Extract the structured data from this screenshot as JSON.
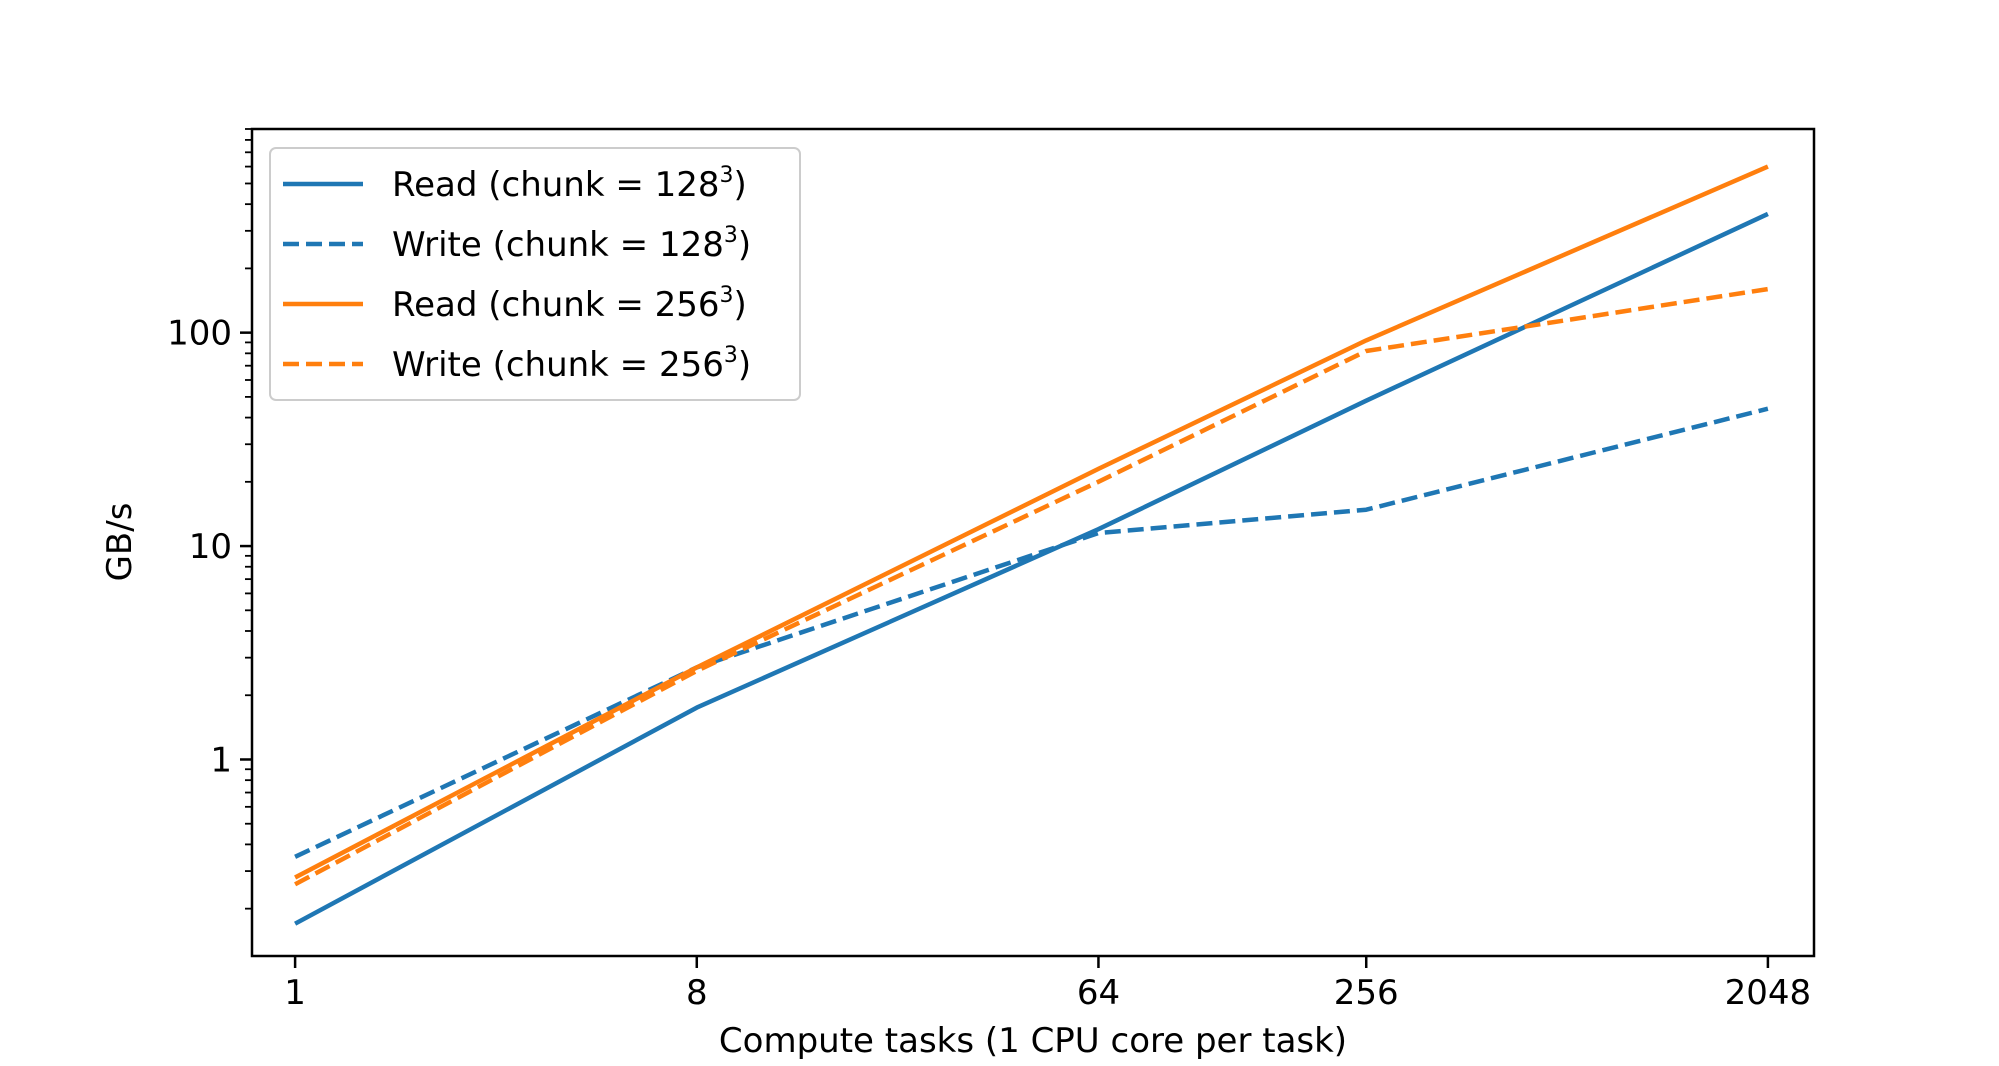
{
  "chart_data": {
    "type": "line",
    "xlabel": "Compute tasks (1 CPU core per task)",
    "ylabel": "GB/s",
    "x_scale": "log2",
    "y_scale": "log10",
    "grid": false,
    "legend_position": "upper-left",
    "x_ticks": [
      1,
      8,
      64,
      256,
      2048
    ],
    "x_tick_labels": [
      "1",
      "8",
      "64",
      "256",
      "2048"
    ],
    "y_ticks": [
      1,
      10,
      100
    ],
    "y_tick_labels": [
      "1",
      "10",
      "100"
    ],
    "xlim": [
      0.8,
      2600
    ],
    "ylim": [
      0.12,
      900
    ],
    "x": [
      1,
      8,
      64,
      256,
      2048
    ],
    "series": [
      {
        "name": "Read (chunk = 128",
        "name_sup": "3",
        "name_end": ")",
        "color": "#1f77b4",
        "style": "solid",
        "values": [
          0.17,
          1.75,
          12.0,
          48.0,
          360.0
        ]
      },
      {
        "name": "Write (chunk = 128",
        "name_sup": "3",
        "name_end": ")",
        "color": "#1f77b4",
        "style": "dashed",
        "values": [
          0.35,
          2.7,
          11.5,
          14.8,
          44.0
        ]
      },
      {
        "name": "Read (chunk = 256",
        "name_sup": "3",
        "name_end": ")",
        "color": "#ff7f0e",
        "style": "solid",
        "values": [
          0.28,
          2.7,
          23.0,
          92.0,
          600.0
        ]
      },
      {
        "name": "Write (chunk = 256",
        "name_sup": "3",
        "name_end": ")",
        "color": "#ff7f0e",
        "style": "dashed",
        "values": [
          0.26,
          2.6,
          20.0,
          82.0,
          160.0
        ]
      }
    ]
  }
}
